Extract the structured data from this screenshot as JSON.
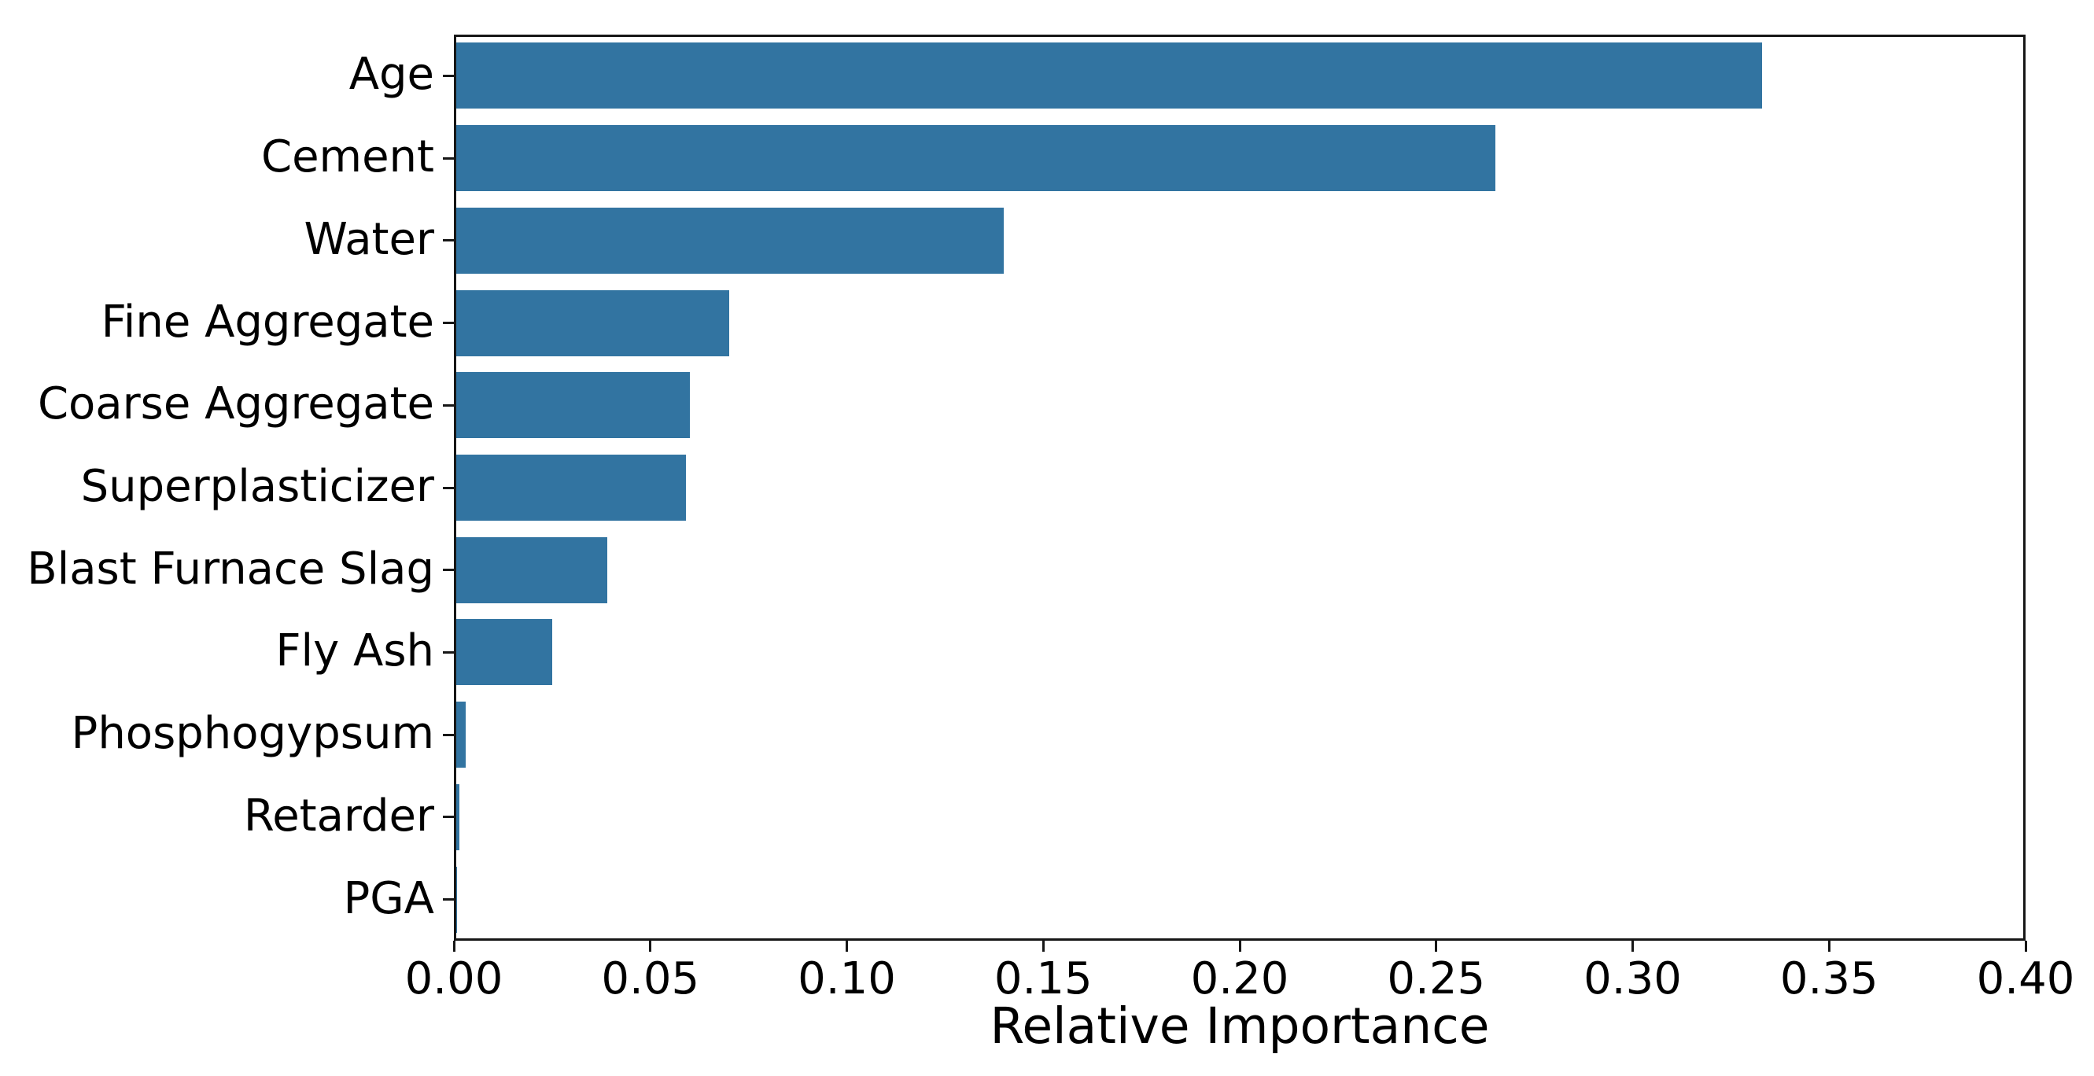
{
  "chart_data": {
    "type": "bar",
    "orientation": "horizontal",
    "title": "",
    "xlabel": "Relative Importance",
    "ylabel": "",
    "categories": [
      "Age",
      "Cement",
      "Water",
      "Fine Aggregate",
      "Coarse Aggregate",
      "Superplasticizer",
      "Blast Furnace Slag",
      "Fly Ash",
      "Phosphogypsum",
      "Retarder",
      "PGA"
    ],
    "values": [
      0.333,
      0.265,
      0.14,
      0.07,
      0.06,
      0.059,
      0.039,
      0.025,
      0.003,
      0.0015,
      0.0008
    ],
    "xlim": [
      0,
      0.4
    ],
    "x_tick_values": [
      0.0,
      0.05,
      0.1,
      0.15,
      0.2,
      0.25,
      0.3,
      0.35,
      0.4
    ],
    "x_tick_labels": [
      "0.00",
      "0.05",
      "0.10",
      "0.15",
      "0.20",
      "0.25",
      "0.30",
      "0.35",
      "0.40"
    ],
    "bar_color": "#3274a1",
    "grid": "off",
    "legend": "none"
  }
}
